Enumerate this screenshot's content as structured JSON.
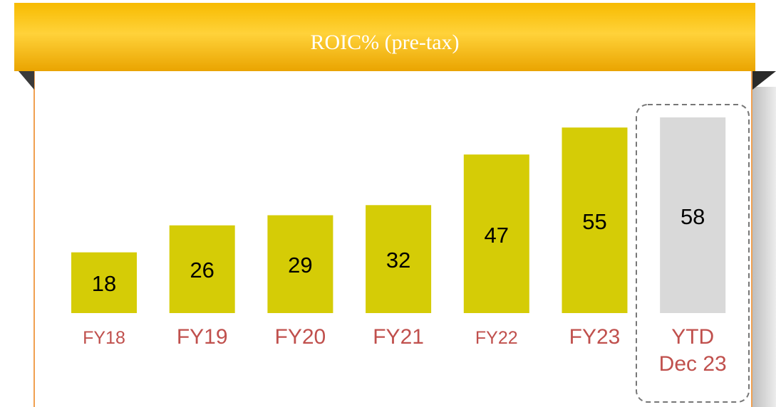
{
  "chart_data": {
    "type": "bar",
    "title": "ROIC% (pre-tax)",
    "categories": [
      "FY18",
      "FY19",
      "FY20",
      "FY21",
      "FY22",
      "FY23",
      "YTD\nDec 23"
    ],
    "values": [
      18,
      26,
      29,
      32,
      47,
      55,
      58
    ],
    "colors": [
      "#d5cc06",
      "#d5cc06",
      "#d5cc06",
      "#d5cc06",
      "#d5cc06",
      "#d5cc06",
      "#d9d9d9"
    ]
  }
}
